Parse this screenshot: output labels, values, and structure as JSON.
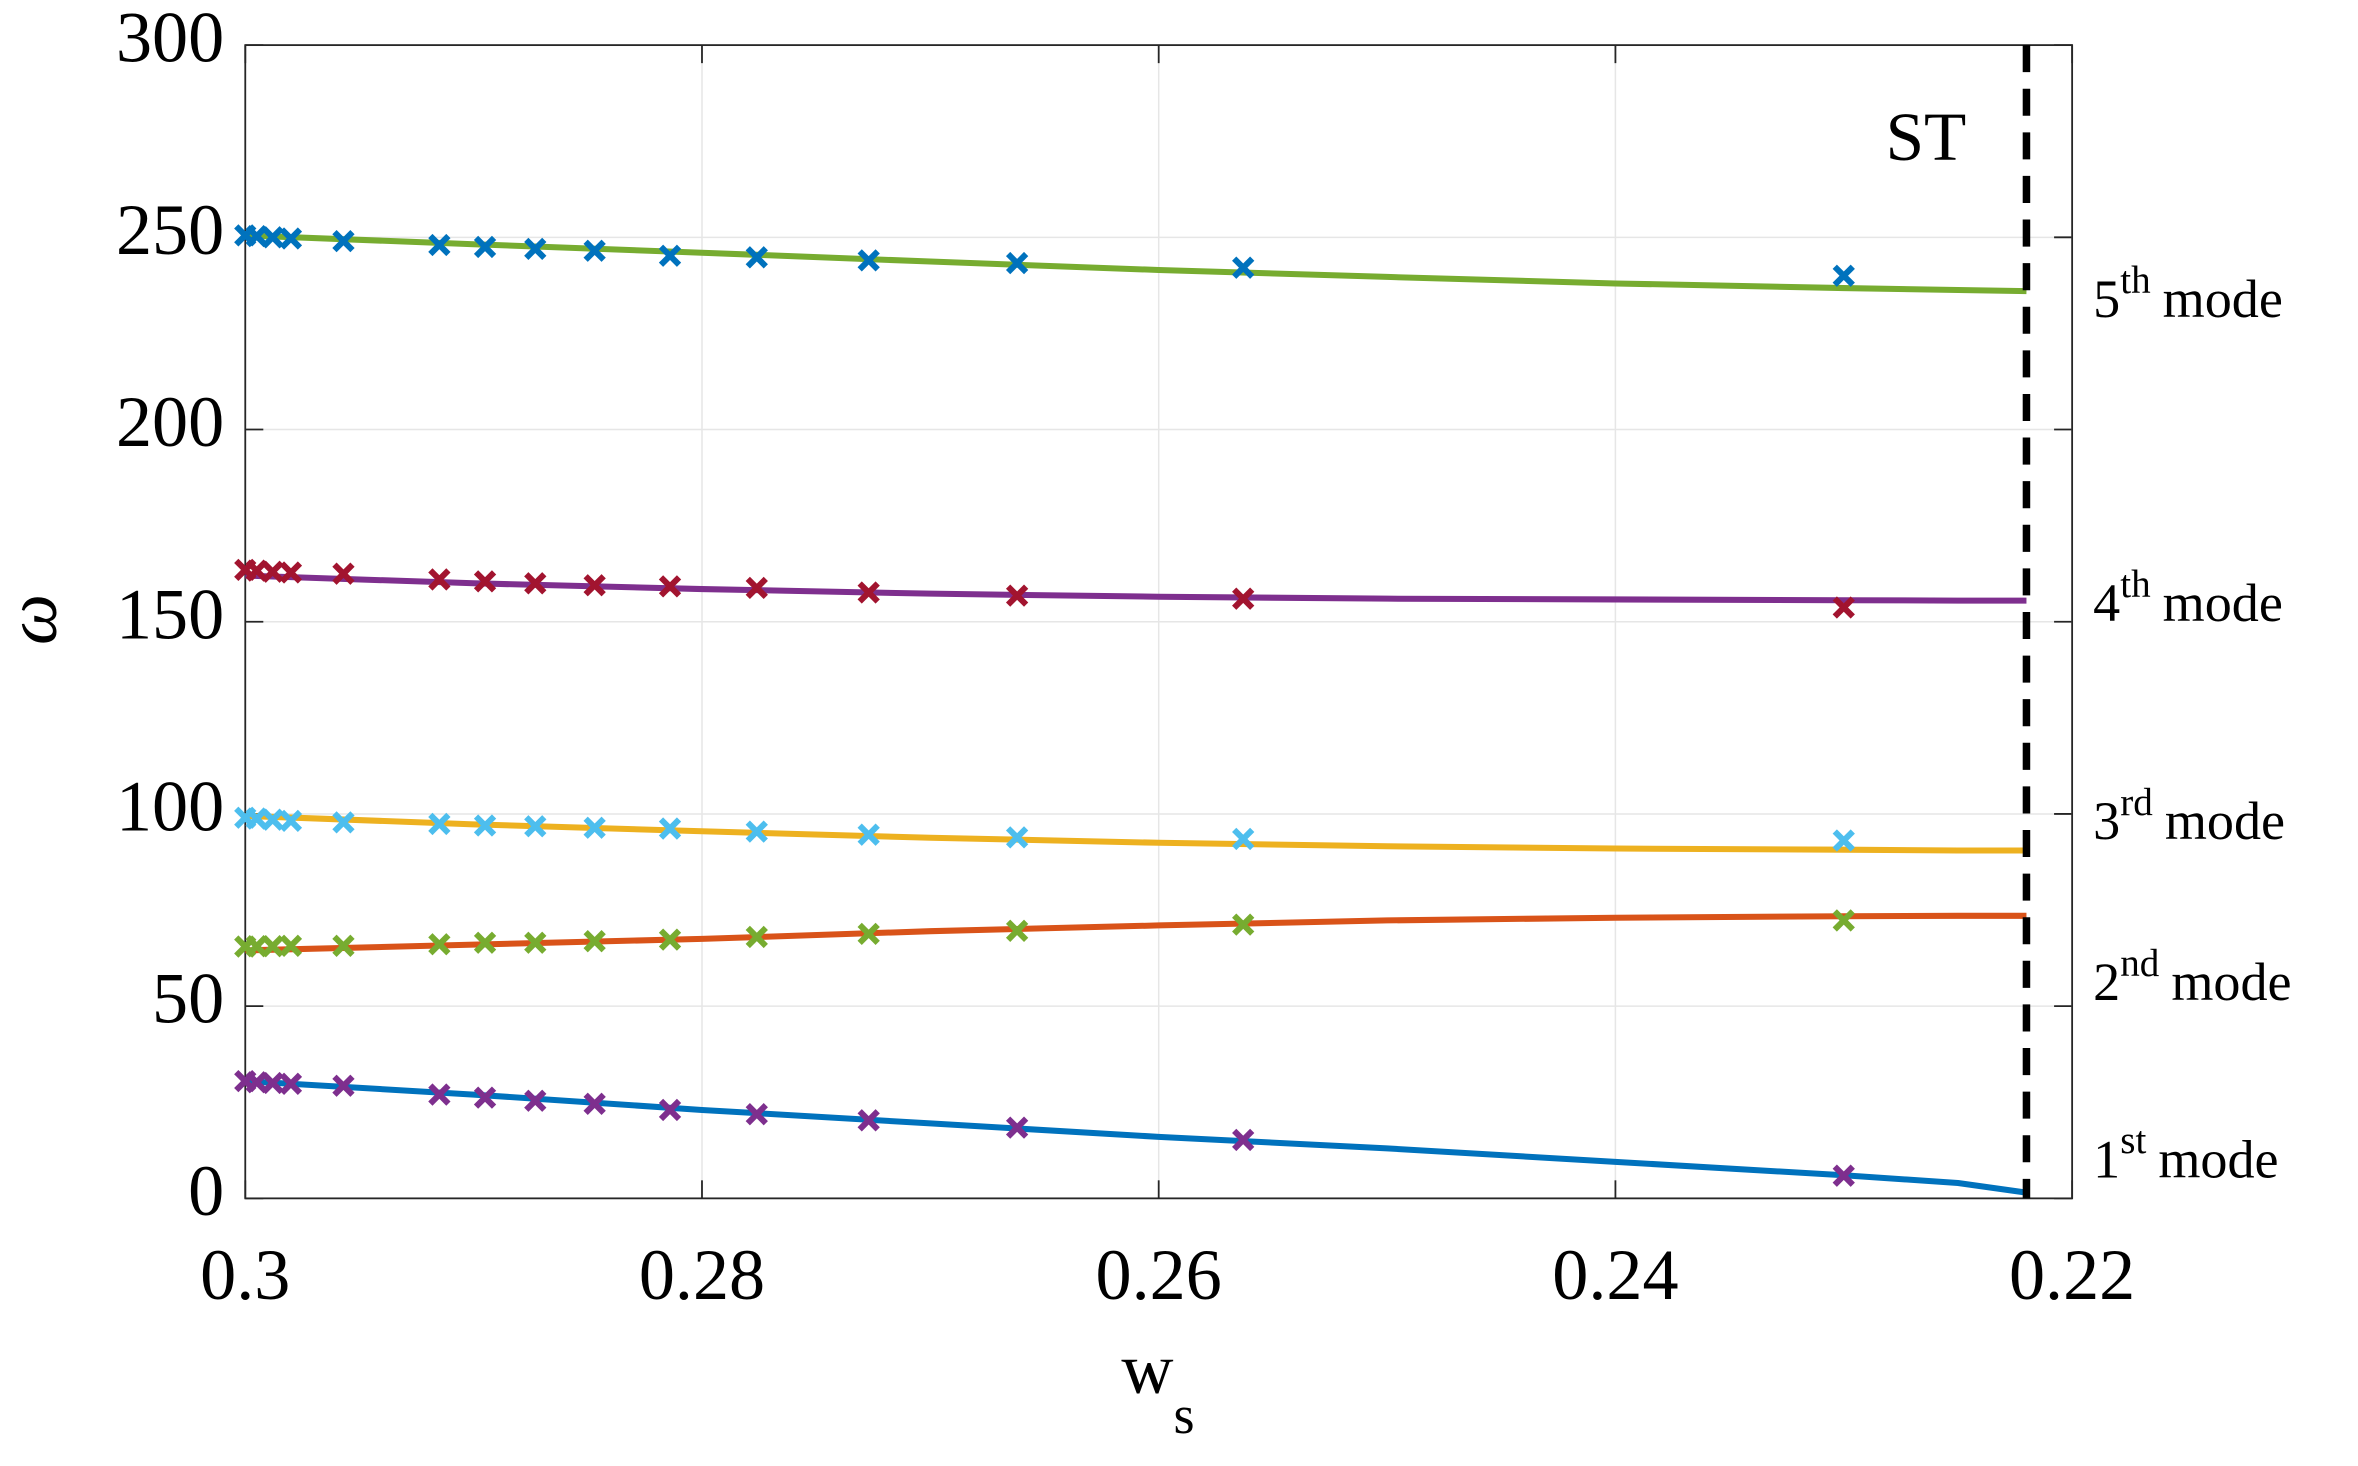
{
  "chart_data": {
    "type": "line",
    "ylabel": "ω",
    "xlabel": {
      "text": "w",
      "subscript": "s"
    },
    "xlim": [
      0.3,
      0.22
    ],
    "ylim": [
      0,
      300
    ],
    "xticks": [
      0.3,
      0.28,
      0.26,
      0.24,
      0.22
    ],
    "yticks": [
      0,
      50,
      100,
      150,
      200,
      250,
      300
    ],
    "grid": true,
    "x": [
      0.3,
      0.2995,
      0.2988,
      0.298,
      0.2957,
      0.2915,
      0.2895,
      0.2873,
      0.2847,
      0.2814,
      0.2776,
      0.2727,
      0.2662,
      0.2563,
      0.23
    ],
    "marker_series": [
      {
        "color": "#7E2F8E",
        "values": [
          30.5,
          30.2,
          30,
          29.8,
          29.3,
          27,
          26.2,
          25.4,
          24.6,
          23,
          21.9,
          20.3,
          18.4,
          15.2,
          5.9
        ]
      },
      {
        "color": "#77AC30",
        "values": [
          65.5,
          65.6,
          65.6,
          65.7,
          65.7,
          66.1,
          66.5,
          66.5,
          66.9,
          67.3,
          68,
          68.8,
          69.6,
          71.2,
          72.3
        ]
      },
      {
        "color": "#4DBEEE",
        "values": [
          99,
          98.8,
          98.5,
          98.2,
          97.8,
          97.4,
          97,
          96.8,
          96.4,
          96.2,
          95.4,
          94.6,
          93.9,
          93.5,
          93.1
        ]
      },
      {
        "color": "#A2142F",
        "values": [
          163.5,
          163.3,
          163,
          162.8,
          162.5,
          161,
          160.5,
          160,
          159.5,
          159.2,
          158.8,
          157.6,
          156.8,
          156,
          153.7
        ]
      },
      {
        "color": "#0072BD",
        "values": [
          250.5,
          250.3,
          250,
          249.7,
          249,
          248,
          247.5,
          247,
          246.5,
          245.2,
          244.8,
          244,
          243.3,
          242.1,
          240
        ]
      }
    ],
    "fit_x": [
      0.3,
      0.29,
      0.28,
      0.27,
      0.26,
      0.25,
      0.24,
      0.23,
      0.225,
      0.222
    ],
    "fit_series": [
      {
        "color": "#0072BD",
        "values": [
          30.5,
          27,
          23,
          19.5,
          16,
          13,
          9.5,
          6,
          4,
          1.5
        ]
      },
      {
        "color": "#D95319",
        "values": [
          64.5,
          66,
          67.5,
          69.5,
          71,
          72.3,
          73,
          73.4,
          73.5,
          73.5
        ]
      },
      {
        "color": "#EDB120",
        "values": [
          99.5,
          97.3,
          95.5,
          93.8,
          92.5,
          91.6,
          91,
          90.7,
          90.5,
          90.5
        ]
      },
      {
        "color": "#7E2F8E",
        "values": [
          162,
          160,
          158.5,
          157.3,
          156.5,
          156,
          155.8,
          155.6,
          155.5,
          155.5
        ]
      },
      {
        "color": "#77AC30",
        "values": [
          250.5,
          248.2,
          246,
          243.7,
          241.5,
          239.7,
          238,
          236.8,
          236.3,
          236
        ]
      }
    ],
    "st_line": 0.222,
    "st_label": "ST",
    "mode_labels": [
      {
        "number": "1",
        "suffix": "st",
        "word": "mode"
      },
      {
        "number": "2",
        "suffix": "nd",
        "word": "mode"
      },
      {
        "number": "3",
        "suffix": "rd",
        "word": "mode"
      },
      {
        "number": "4",
        "suffix": "th",
        "word": "mode"
      },
      {
        "number": "5",
        "suffix": "th",
        "word": "mode"
      }
    ]
  }
}
